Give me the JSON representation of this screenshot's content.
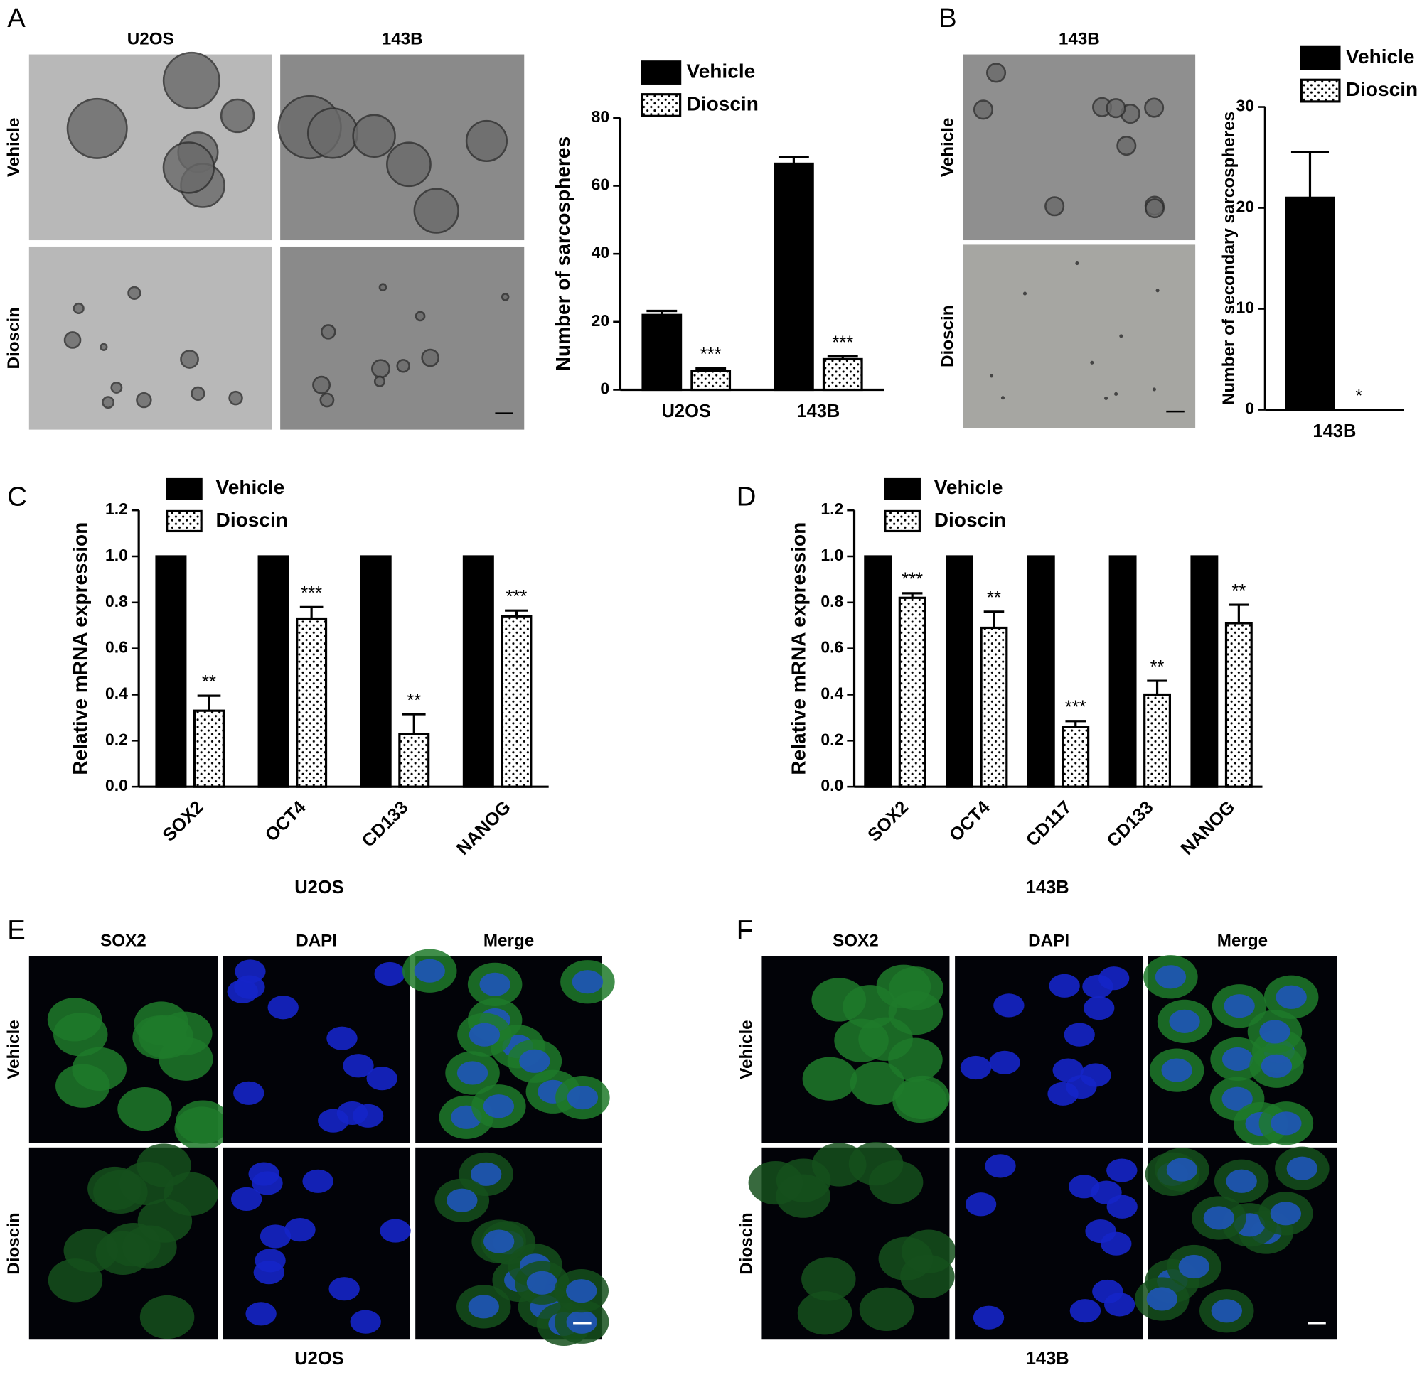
{
  "chart_data": [
    {
      "type": "bar",
      "categories": [
        "U2OS",
        "143B"
      ],
      "y_label": "Number of sarcospheres",
      "ylim": [
        0,
        80
      ],
      "yticks": [
        0,
        20,
        40,
        60,
        80
      ],
      "series": [
        {
          "name": "Vehicle",
          "color": "#000000",
          "values": [
            22,
            66.5
          ],
          "errors": [
            1.2,
            2
          ]
        },
        {
          "name": "Dioscin",
          "color": "#ffffff",
          "pattern": "dots",
          "values": [
            5.5,
            9
          ],
          "errors": [
            0.8,
            0.8
          ],
          "significance": [
            "***",
            "***"
          ]
        }
      ]
    },
    {
      "type": "bar",
      "categories": [
        "143B"
      ],
      "y_label": "Number of secondary sarcospheres",
      "ylim": [
        0,
        30
      ],
      "yticks": [
        0,
        10,
        20,
        30
      ],
      "series": [
        {
          "name": "Vehicle",
          "color": "#000000",
          "values": [
            21
          ],
          "errors": [
            4.5
          ]
        },
        {
          "name": "Dioscin",
          "color": "#ffffff",
          "pattern": "dots",
          "values": [
            0
          ],
          "errors": [
            0
          ],
          "significance": [
            "*"
          ]
        }
      ]
    },
    {
      "type": "bar",
      "panel_label": "C",
      "categories": [
        "SOX2",
        "OCT4",
        "CD133",
        "NANOG"
      ],
      "x_label": "U2OS",
      "y_label": "Relative mRNA expression",
      "ylim": [
        0,
        1.2
      ],
      "yticks": [
        {
          "value": 0,
          "label": "0.0"
        },
        0.2,
        0.4,
        0.6,
        0.8,
        {
          "value": 1,
          "label": "1.0"
        },
        1.2
      ],
      "series": [
        {
          "name": "Vehicle",
          "color": "#000000",
          "values": [
            1,
            1,
            1,
            1
          ]
        },
        {
          "name": "Dioscin",
          "color": "#ffffff",
          "pattern": "dots",
          "values": [
            0.33,
            0.73,
            0.23,
            0.74
          ],
          "errors": [
            0.065,
            0.05,
            0.085,
            0.025
          ],
          "significance": [
            "**",
            "***",
            "**",
            "***"
          ]
        }
      ]
    },
    {
      "type": "bar",
      "panel_label": "D",
      "categories": [
        "SOX2",
        "OCT4",
        "CD117",
        "CD133",
        "NANOG"
      ],
      "x_label": "143B",
      "y_label": "Relative mRNA expression",
      "ylim": [
        0,
        1.2
      ],
      "yticks": [
        {
          "value": 0,
          "label": "0.0"
        },
        0.2,
        0.4,
        0.6,
        0.8,
        {
          "value": 1,
          "label": "1.0"
        },
        1.2
      ],
      "series": [
        {
          "name": "Vehicle",
          "color": "#000000",
          "values": [
            1,
            1,
            1,
            1,
            1
          ]
        },
        {
          "name": "Dioscin",
          "color": "#ffffff",
          "pattern": "dots",
          "values": [
            0.82,
            0.69,
            0.26,
            0.4,
            0.71
          ],
          "errors": [
            0.02,
            0.07,
            0.025,
            0.06,
            0.08
          ],
          "significance": [
            "***",
            "**",
            "***",
            "**",
            "**"
          ]
        }
      ]
    }
  ],
  "image_panels": [
    {
      "panel_label": "A",
      "columns": [
        "U2OS",
        "143B"
      ],
      "rows": [
        "Vehicle",
        "Dioscin"
      ]
    },
    {
      "panel_label": "B",
      "columns": [
        "143B"
      ],
      "rows": [
        "Vehicle",
        "Dioscin"
      ]
    },
    {
      "panel_label": "E",
      "columns": [
        "SOX2",
        "DAPI",
        "Merge"
      ],
      "rows": [
        "Vehicle",
        "Dioscin"
      ],
      "caption": "U2OS"
    },
    {
      "panel_label": "F",
      "columns": [
        "SOX2",
        "DAPI",
        "Merge"
      ],
      "rows": [
        "Vehicle",
        "Dioscin"
      ],
      "caption": "143B"
    }
  ]
}
